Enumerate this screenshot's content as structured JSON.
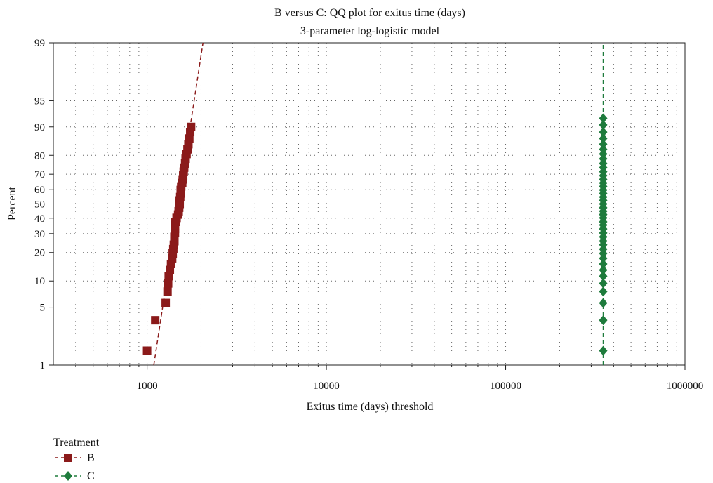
{
  "chart_data": {
    "type": "scatter",
    "title": "B versus C: QQ plot for exitus time (days)",
    "subtitle": "3-parameter log-logistic model",
    "xlabel": "Exitus time (days) threshold",
    "ylabel": "Percent",
    "x_scale": "log",
    "y_scale": "logit",
    "xlim": [
      300,
      1000000
    ],
    "ylim": [
      1,
      99
    ],
    "x_ticks": [
      1000,
      10000,
      100000,
      1000000
    ],
    "x_tick_labels": [
      "1000",
      "10000",
      "100000",
      "1000000"
    ],
    "y_ticks": [
      1,
      5,
      10,
      20,
      30,
      40,
      50,
      60,
      70,
      80,
      90,
      95,
      99
    ],
    "y_tick_labels": [
      "1",
      "5",
      "10",
      "20",
      "30",
      "40",
      "50",
      "60",
      "70",
      "80",
      "90",
      "95",
      "99"
    ],
    "grid": true,
    "legend_title": "Treatment",
    "legend_position": "bottom-left",
    "series": [
      {
        "name": "B",
        "color": "#8b1a1a",
        "marker": "square",
        "fit_line": {
          "x": [
            1090,
            2050
          ],
          "y": [
            1,
            99
          ]
        },
        "points": [
          [
            1000,
            1.5
          ],
          [
            1110,
            3.5
          ],
          [
            1270,
            5.6
          ],
          [
            1300,
            7.6
          ],
          [
            1310,
            9.4
          ],
          [
            1320,
            11.3
          ],
          [
            1340,
            13.2
          ],
          [
            1360,
            15.3
          ],
          [
            1380,
            17.5
          ],
          [
            1390,
            19.6
          ],
          [
            1400,
            21.6
          ],
          [
            1410,
            23.8
          ],
          [
            1420,
            25.7
          ],
          [
            1420,
            28.1
          ],
          [
            1430,
            30.4
          ],
          [
            1430,
            32.9
          ],
          [
            1430,
            35.4
          ],
          [
            1440,
            37.5
          ],
          [
            1460,
            40.2
          ],
          [
            1490,
            42.5
          ],
          [
            1500,
            44.8
          ],
          [
            1510,
            47.3
          ],
          [
            1520,
            50
          ],
          [
            1520,
            52.5
          ],
          [
            1530,
            54.9
          ],
          [
            1540,
            57.4
          ],
          [
            1540,
            59.8
          ],
          [
            1550,
            62.2
          ],
          [
            1570,
            64.5
          ],
          [
            1580,
            66.8
          ],
          [
            1590,
            69.2
          ],
          [
            1600,
            71.5
          ],
          [
            1610,
            73.8
          ],
          [
            1630,
            76
          ],
          [
            1640,
            78.4
          ],
          [
            1660,
            80.6
          ],
          [
            1680,
            82.6
          ],
          [
            1700,
            84.6
          ],
          [
            1720,
            86.6
          ],
          [
            1740,
            88.6
          ],
          [
            1760,
            90
          ]
        ]
      },
      {
        "name": "C",
        "color": "#1e7b3c",
        "marker": "diamond",
        "fit_line": {
          "x": [
            350000,
            350000
          ],
          "y": [
            1,
            99
          ]
        },
        "points": [
          [
            350000,
            1.5
          ],
          [
            350000,
            3.5
          ],
          [
            350000,
            5.6
          ],
          [
            350000,
            7.6
          ],
          [
            350000,
            9.4
          ],
          [
            350000,
            11.3
          ],
          [
            350000,
            13.2
          ],
          [
            350000,
            15.3
          ],
          [
            350000,
            17.5
          ],
          [
            350000,
            19.6
          ],
          [
            350000,
            21.6
          ],
          [
            350000,
            23.8
          ],
          [
            350000,
            25.7
          ],
          [
            350000,
            28.1
          ],
          [
            350000,
            30.4
          ],
          [
            350000,
            32.9
          ],
          [
            350000,
            35.4
          ],
          [
            350000,
            37.5
          ],
          [
            350000,
            40.2
          ],
          [
            350000,
            42.5
          ],
          [
            350000,
            44.8
          ],
          [
            350000,
            47.3
          ],
          [
            350000,
            50
          ],
          [
            350000,
            52.5
          ],
          [
            350000,
            54.9
          ],
          [
            350000,
            57.4
          ],
          [
            350000,
            59.8
          ],
          [
            350000,
            62.2
          ],
          [
            350000,
            64.5
          ],
          [
            350000,
            66.8
          ],
          [
            350000,
            69.2
          ],
          [
            350000,
            71.5
          ],
          [
            350000,
            73.8
          ],
          [
            350000,
            76
          ],
          [
            350000,
            78.4
          ],
          [
            350000,
            80.6
          ],
          [
            350000,
            82.6
          ],
          [
            350000,
            84.6
          ],
          [
            350000,
            86.6
          ],
          [
            350000,
            88.6
          ],
          [
            350000,
            90.5
          ],
          [
            350000,
            92
          ]
        ]
      }
    ]
  }
}
